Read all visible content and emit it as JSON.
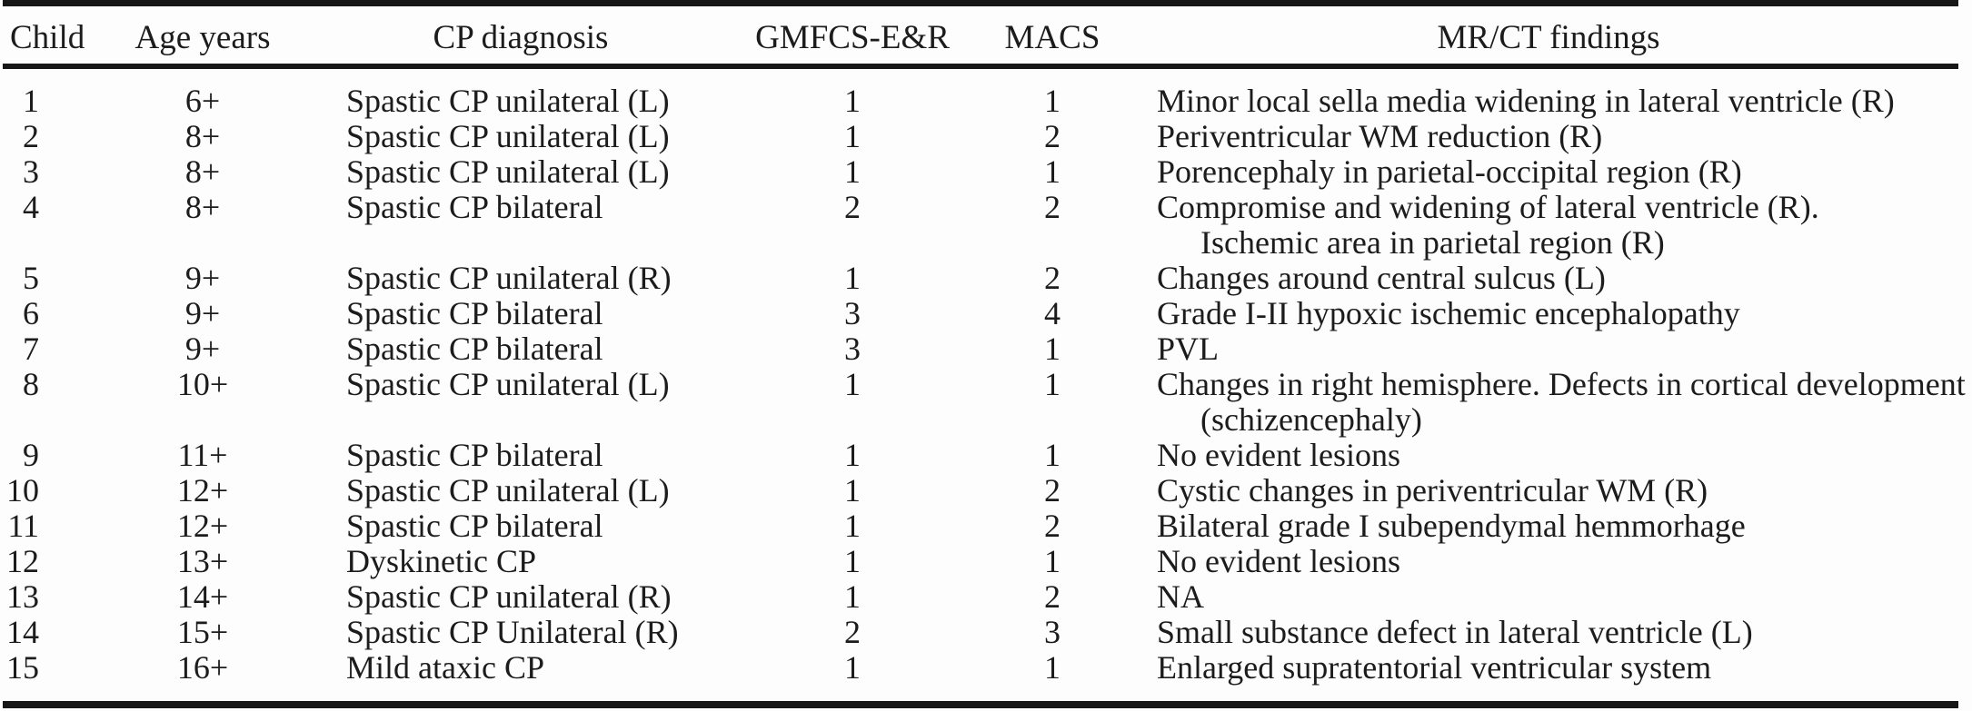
{
  "table": {
    "columns": [
      "Child",
      "Age years",
      "CP diagnosis",
      "GMFCS-E&R",
      "MACS",
      "MR/CT findings"
    ],
    "rows": [
      {
        "child": "1",
        "age": "6+",
        "diagnosis": "Spastic CP unilateral (L)",
        "gmfcs": "1",
        "macs": "1",
        "findings": [
          "Minor local sella media widening in lateral ventricle (R)"
        ]
      },
      {
        "child": "2",
        "age": "8+",
        "diagnosis": "Spastic CP unilateral (L)",
        "gmfcs": "1",
        "macs": "2",
        "findings": [
          "Periventricular WM reduction (R)"
        ]
      },
      {
        "child": "3",
        "age": "8+",
        "diagnosis": "Spastic CP unilateral (L)",
        "gmfcs": "1",
        "macs": "1",
        "findings": [
          "Porencephaly in parietal-occipital region (R)"
        ]
      },
      {
        "child": "4",
        "age": "8+",
        "diagnosis": "Spastic CP bilateral",
        "gmfcs": "2",
        "macs": "2",
        "findings": [
          "Compromise and widening of lateral ventricle (R).",
          "Ischemic area in parietal region (R)"
        ]
      },
      {
        "child": "5",
        "age": "9+",
        "diagnosis": "Spastic CP unilateral (R)",
        "gmfcs": "1",
        "macs": "2",
        "findings": [
          "Changes around central sulcus (L)"
        ]
      },
      {
        "child": "6",
        "age": "9+",
        "diagnosis": "Spastic CP bilateral",
        "gmfcs": "3",
        "macs": "4",
        "findings": [
          "Grade I-II hypoxic ischemic encephalopathy"
        ]
      },
      {
        "child": "7",
        "age": "9+",
        "diagnosis": "Spastic CP bilateral",
        "gmfcs": "3",
        "macs": "1",
        "findings": [
          "PVL"
        ]
      },
      {
        "child": "8",
        "age": "10+",
        "diagnosis": "Spastic CP unilateral (L)",
        "gmfcs": "1",
        "macs": "1",
        "findings": [
          "Changes in right hemisphere. Defects in cortical development",
          "(schizencephaly)"
        ]
      },
      {
        "child": "9",
        "age": "11+",
        "diagnosis": "Spastic CP bilateral",
        "gmfcs": "1",
        "macs": "1",
        "findings": [
          "No evident lesions"
        ]
      },
      {
        "child": "10",
        "age": "12+",
        "diagnosis": "Spastic CP unilateral (L)",
        "gmfcs": "1",
        "macs": "2",
        "findings": [
          "Cystic changes in periventricular WM (R)"
        ]
      },
      {
        "child": "11",
        "age": "12+",
        "diagnosis": "Spastic CP bilateral",
        "gmfcs": "1",
        "macs": "2",
        "findings": [
          "Bilateral grade I subependymal hemmorhage"
        ]
      },
      {
        "child": "12",
        "age": "13+",
        "diagnosis": "Dyskinetic CP",
        "gmfcs": "1",
        "macs": "1",
        "findings": [
          "No evident lesions"
        ]
      },
      {
        "child": "13",
        "age": "14+",
        "diagnosis": "Spastic CP unilateral (R)",
        "gmfcs": "1",
        "macs": "2",
        "findings": [
          "NA"
        ]
      },
      {
        "child": "14",
        "age": "15+",
        "diagnosis": "Spastic CP Unilateral (R)",
        "gmfcs": "2",
        "macs": "3",
        "findings": [
          "Small substance defect in lateral ventricle (L)"
        ]
      },
      {
        "child": "15",
        "age": "16+",
        "diagnosis": "Mild ataxic CP",
        "gmfcs": "1",
        "macs": "1",
        "findings": [
          "Enlarged supratentorial ventricular system"
        ]
      }
    ]
  }
}
